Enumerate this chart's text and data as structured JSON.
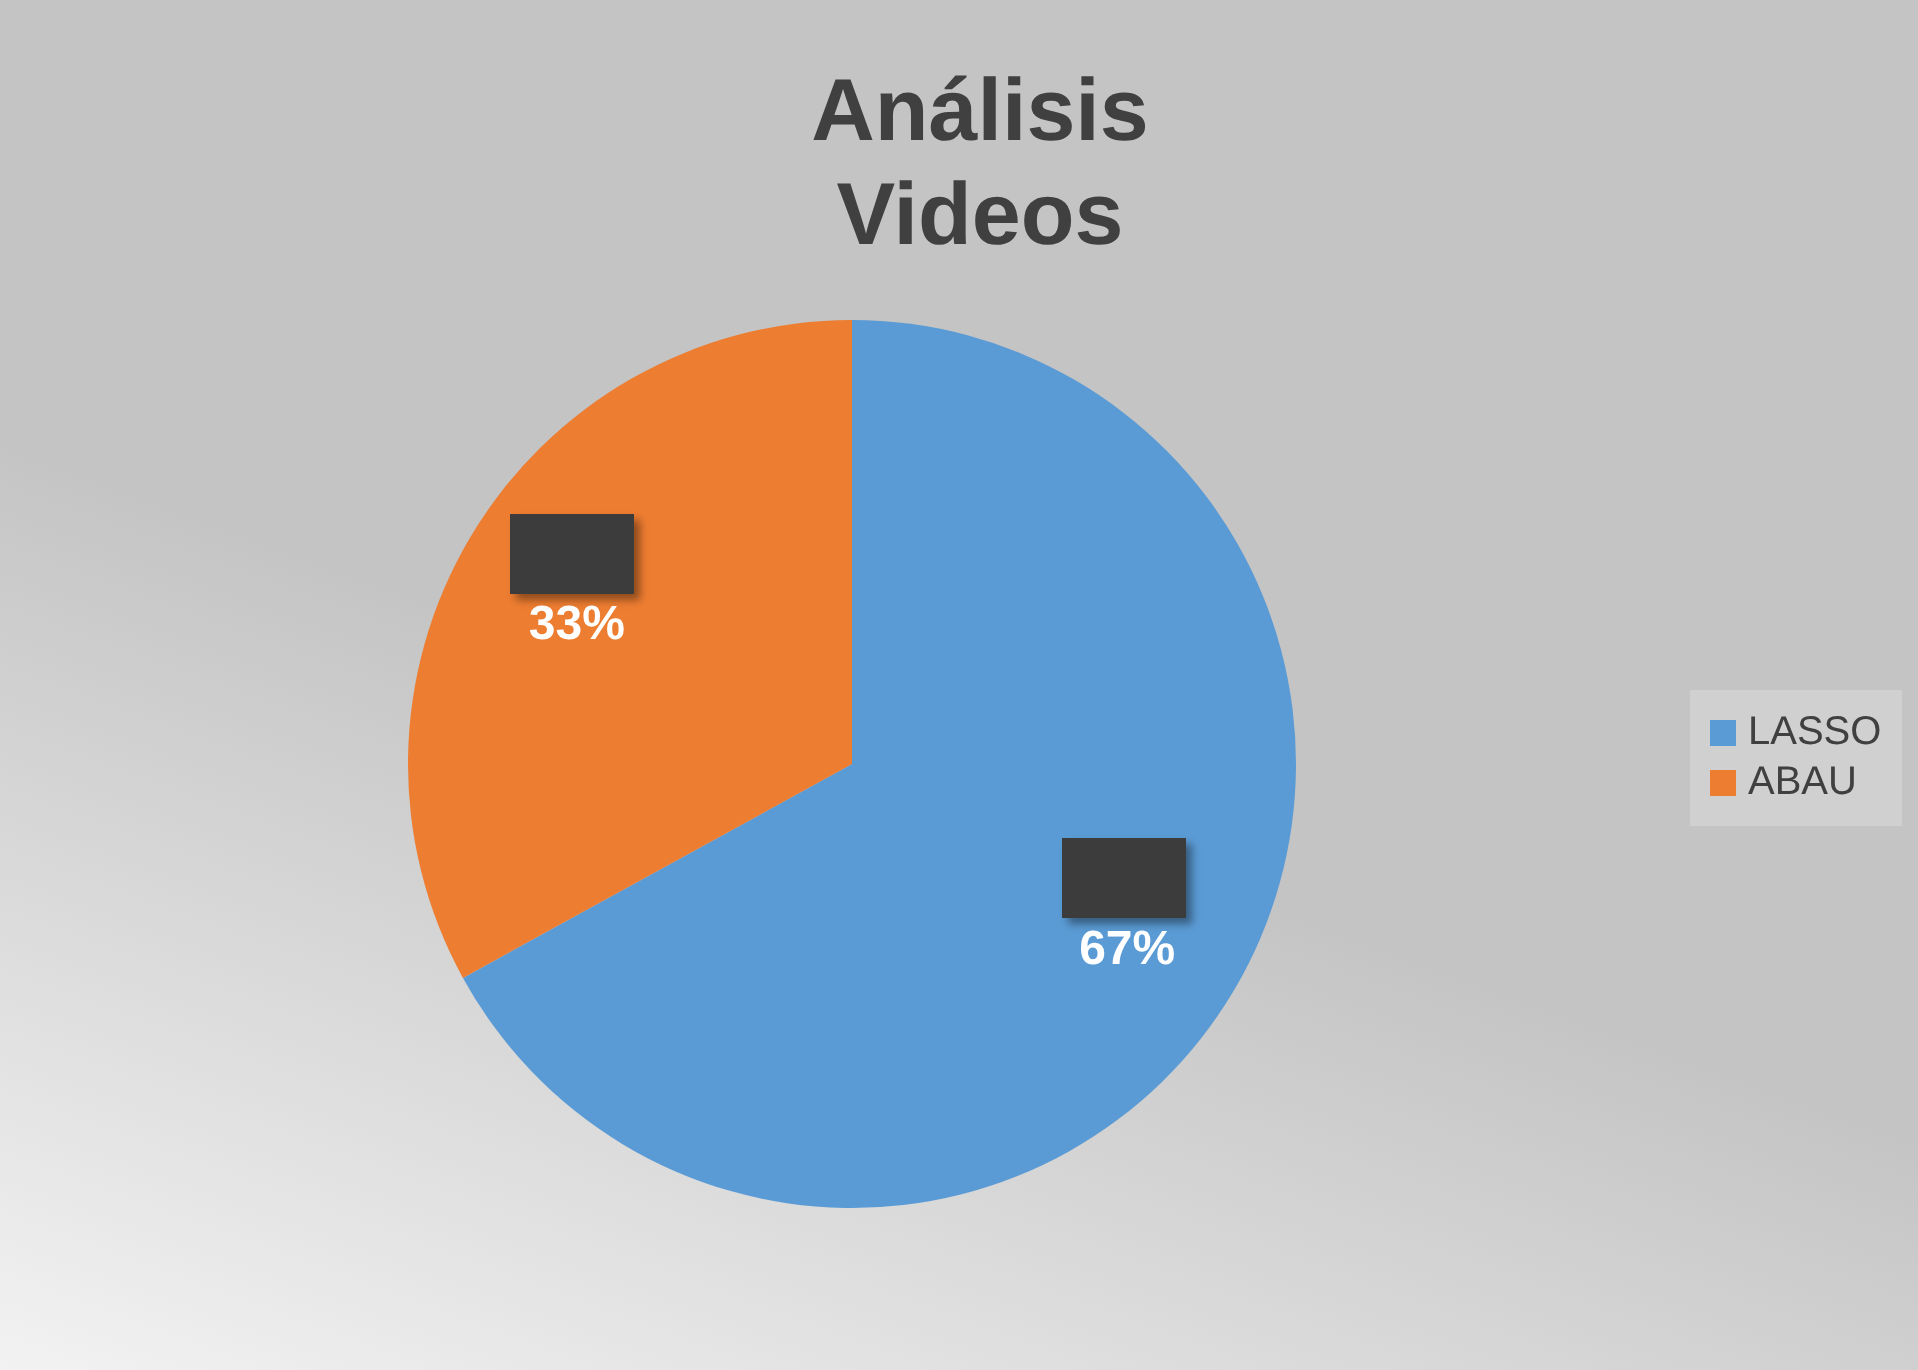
{
  "chart_data": {
    "type": "pie",
    "title": "Análisis Videos",
    "categories": [
      "LASSO",
      "ABAU"
    ],
    "values": [
      67,
      33
    ],
    "value_labels": [
      "67%",
      "33%"
    ],
    "colors": [
      "#5b9bd5",
      "#ed7d31"
    ],
    "legend": "right"
  }
}
